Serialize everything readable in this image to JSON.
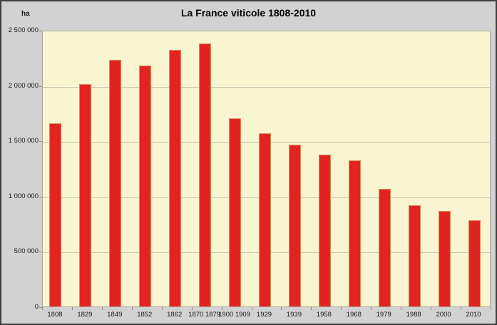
{
  "window": {
    "title": "La France viticole 1808-2010"
  },
  "chart_data": {
    "type": "bar",
    "title": "La France viticole 1808-2010",
    "xlabel": "",
    "ylabel": "ha",
    "categories": [
      "1808",
      "1829",
      "1849",
      "1852",
      "1862",
      "1870 1879",
      "1900 1909",
      "1929",
      "1939",
      "1958",
      "1968",
      "1979",
      "1988",
      "2000",
      "2010"
    ],
    "values": [
      1655000,
      2010000,
      2230000,
      2175000,
      2320000,
      2380000,
      1700000,
      1565000,
      1460000,
      1375000,
      1320000,
      1065000,
      915000,
      865000,
      780000
    ],
    "ylim": [
      0,
      2500000
    ],
    "ytick_values": [
      0,
      500000,
      1000000,
      1500000,
      2000000,
      2500000
    ],
    "ytick_labels": [
      "0",
      "500 000",
      "1 000 000",
      "1 500 000",
      "2 000 000",
      "2 500 000"
    ],
    "grid": true,
    "legend": false,
    "colors": {
      "bar": "#e32322",
      "bar_border": "#dd8a55",
      "plot_background": "#f8f5d0",
      "background": "#d2d2d2",
      "gridline": "#c9c6b2",
      "axis": "#a9a694",
      "frame_border": "#3f3f3f",
      "text": "#000000"
    }
  }
}
